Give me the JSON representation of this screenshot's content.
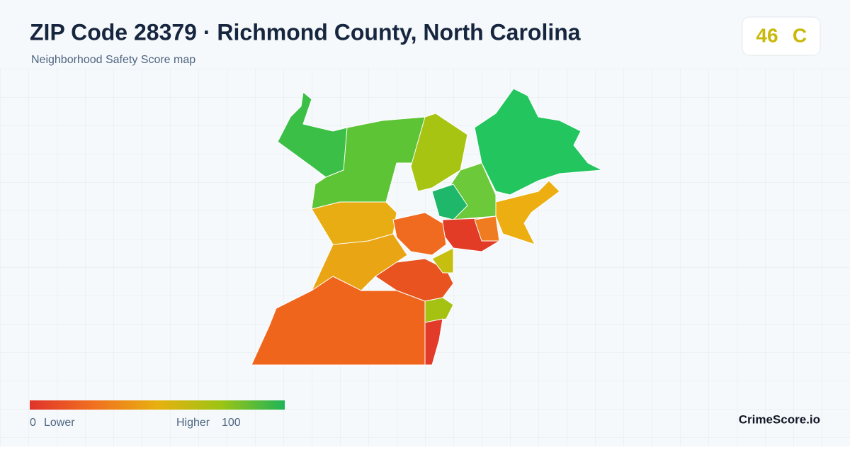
{
  "header": {
    "title": "ZIP Code 28379 · Richmond County, North Carolina",
    "subtitle": "Neighborhood Safety Score map"
  },
  "score": {
    "value": "46",
    "grade": "C"
  },
  "legend": {
    "min": "0",
    "min_label": "Lower",
    "max_label": "Higher",
    "max": "100"
  },
  "brand": "CrimeScore.io"
}
